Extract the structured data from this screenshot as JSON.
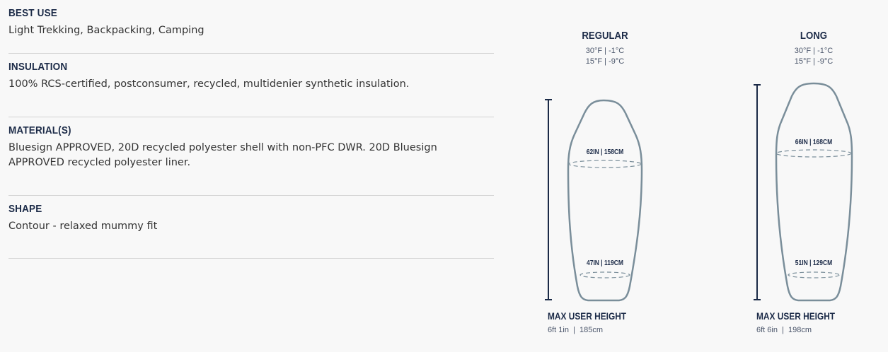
{
  "specs": [
    {
      "heading": "BEST USE",
      "text": "Light Trekking, Backpacking, Camping"
    },
    {
      "heading": "INSULATION",
      "text": "100% RCS-certified, postconsumer, recycled, multidenier synthetic insulation."
    },
    {
      "heading": "MATERIAL(S)",
      "text": "Bluesign APPROVED, 20D recycled polyester shell with non-PFC DWR. 20D Bluesign APPROVED recycled polyester liner."
    },
    {
      "heading": "SHAPE",
      "text": "Contour - relaxed mummy fit"
    }
  ],
  "sizes": [
    {
      "name": "REGULAR",
      "temp1": "30°F | -1°C",
      "temp2": "15°F | -9°C",
      "shoulder": "62IN | 158CM",
      "hip": "47IN | 119CM",
      "max_label": "MAX USER HEIGHT",
      "max_value": "6ft 1in  |  185cm"
    },
    {
      "name": "LONG",
      "temp1": "30°F | -1°C",
      "temp2": "15°F | -9°C",
      "shoulder": "66IN | 168CM",
      "hip": "51IN | 129CM",
      "max_label": "MAX USER HEIGHT",
      "max_value": "6ft 6in  |  198cm"
    }
  ],
  "colors": {
    "heading": "#1b2a47",
    "outline": "#7a8e9a"
  }
}
